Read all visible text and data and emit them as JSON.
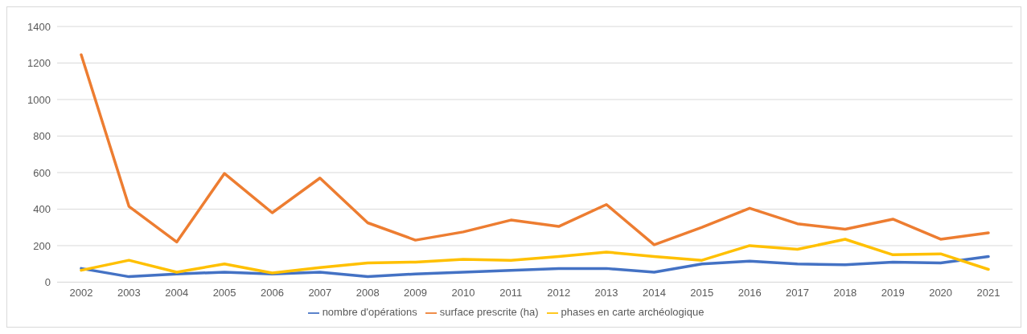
{
  "chart_data": {
    "type": "line",
    "categories": [
      "2002",
      "2003",
      "2004",
      "2005",
      "2006",
      "2007",
      "2008",
      "2009",
      "2010",
      "2011",
      "2012",
      "2013",
      "2014",
      "2015",
      "2016",
      "2017",
      "2018",
      "2019",
      "2020",
      "2021"
    ],
    "series": [
      {
        "name": "nombre d'opérations",
        "color": "#4472c4",
        "values": [
          75,
          30,
          45,
          55,
          45,
          55,
          30,
          45,
          55,
          65,
          75,
          75,
          55,
          100,
          115,
          100,
          95,
          110,
          105,
          140
        ]
      },
      {
        "name": "surface prescrite (ha)",
        "color": "#ed7d31",
        "values": [
          1245,
          415,
          220,
          595,
          380,
          570,
          325,
          230,
          275,
          340,
          305,
          425,
          205,
          300,
          405,
          320,
          290,
          345,
          235,
          270
        ]
      },
      {
        "name": "phases en carte archéologique",
        "color": "#ffc000",
        "values": [
          65,
          120,
          55,
          100,
          50,
          80,
          105,
          110,
          125,
          120,
          140,
          165,
          140,
          120,
          200,
          180,
          235,
          150,
          155,
          70
        ]
      }
    ],
    "ylim": [
      0,
      1400
    ],
    "yticks": [
      0,
      200,
      400,
      600,
      800,
      1000,
      1200,
      1400
    ],
    "grid": "y",
    "legend": "bottom",
    "marker": "none",
    "line_style": "solid"
  }
}
